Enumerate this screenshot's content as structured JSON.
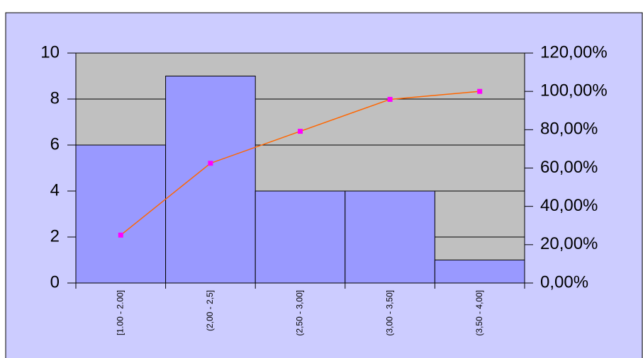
{
  "chart_data": {
    "type": "bar",
    "categories": [
      "[1.00 - 2.00]",
      "(2,00 - 2,5]",
      "(2,50 - 3,00]",
      "(3,00 - 3,50]",
      "(3,50 - 4,00]"
    ],
    "series": [
      {
        "type": "bar",
        "color": "#9999ff",
        "values": [
          6,
          9,
          4,
          4,
          1
        ]
      },
      {
        "type": "line",
        "axis": "y2",
        "color": "#ff6600",
        "marker_color": "#ff00ff",
        "values": [
          25,
          62.5,
          79.17,
          95.83,
          100
        ]
      }
    ],
    "ylim": [
      0,
      10
    ],
    "yticks": [
      0,
      2,
      4,
      6,
      8,
      10
    ],
    "y2lim": [
      0,
      120
    ],
    "y2ticks": [
      {
        "value": 0,
        "label": "0,00%"
      },
      {
        "value": 20,
        "label": "20,00%"
      },
      {
        "value": 40,
        "label": "40,00%"
      },
      {
        "value": 60,
        "label": "60,00%"
      },
      {
        "value": 80,
        "label": "80,00%"
      },
      {
        "value": 100,
        "label": "100,00%"
      },
      {
        "value": 120,
        "label": "120,00%"
      }
    ],
    "grid": true
  }
}
